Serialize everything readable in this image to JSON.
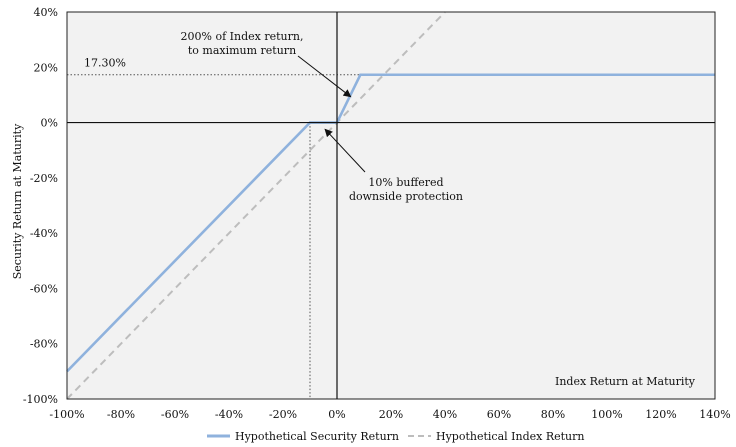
{
  "chart_data": {
    "type": "line",
    "xlabel": "Index Return at Maturity",
    "ylabel": "Security Return at Maturity",
    "xlim": [
      -100,
      140
    ],
    "ylim": [
      -100,
      40
    ],
    "x_ticks": [
      -100,
      -80,
      -60,
      -40,
      -20,
      0,
      20,
      40,
      60,
      80,
      100,
      120,
      140
    ],
    "y_ticks": [
      -100,
      -80,
      -60,
      -40,
      -20,
      0,
      20,
      40
    ],
    "x_tick_labels": [
      "-100%",
      "-80%",
      "-60%",
      "-40%",
      "-20%",
      "0%",
      "20%",
      "40%",
      "60%",
      "80%",
      "100%",
      "120%",
      "140%"
    ],
    "y_tick_labels": [
      "-100%",
      "-80%",
      "-60%",
      "-40%",
      "-20%",
      "0%",
      "20%",
      "40%"
    ],
    "grid": false,
    "legend_position": "bottom",
    "series": [
      {
        "name": "Hypothetical Security Return",
        "color": "#8fb2dd",
        "style": "solid",
        "x": [
          -100,
          -10,
          0,
          8.65,
          140
        ],
        "y": [
          -90,
          0,
          0,
          17.3,
          17.3
        ]
      },
      {
        "name": "Hypothetical Index Return",
        "color": "#bdbdbd",
        "style": "dashed",
        "x": [
          -100,
          40
        ],
        "y": [
          -100,
          40
        ]
      }
    ],
    "reference_lines": {
      "max_return_value": 17.3,
      "max_return_label": "17.30%",
      "buffer_x": [
        -10,
        0
      ]
    },
    "annotations": [
      {
        "lines": [
          "200% of Index return,",
          "to maximum return"
        ]
      },
      {
        "lines": [
          "10% buffered",
          "downside protection"
        ]
      }
    ]
  }
}
